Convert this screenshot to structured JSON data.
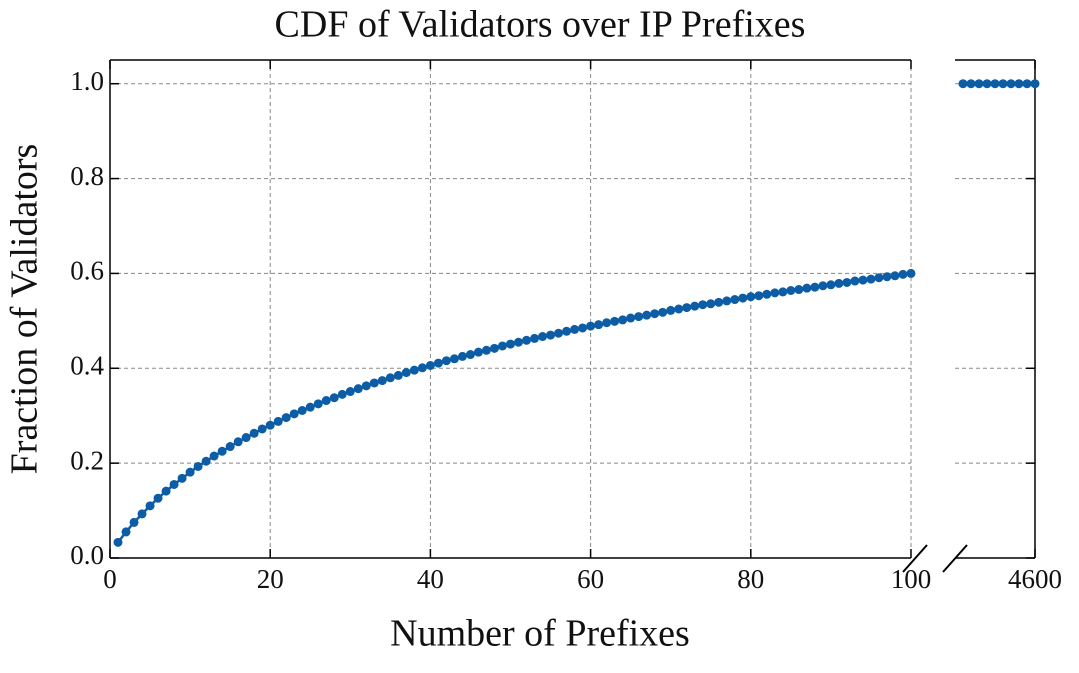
{
  "chart_data": {
    "type": "line",
    "title": "CDF of Validators over IP Prefixes",
    "xlabel": "Number of Prefixes",
    "ylabel": "Fraction of Validators",
    "color": "#0c5da5",
    "grid": true,
    "markers": true,
    "ylim": [
      0,
      1.05
    ],
    "yticks": [
      {
        "value": 0,
        "label": "0.0"
      },
      0.2,
      0.4,
      0.6,
      0.8,
      {
        "value": 1,
        "label": "1.0"
      }
    ],
    "panels": [
      {
        "xlim": [
          0,
          100
        ],
        "xticks": [
          0,
          20,
          40,
          60,
          80,
          100
        ],
        "x": [
          1,
          2,
          3,
          4,
          5,
          6,
          7,
          8,
          9,
          10,
          11,
          12,
          13,
          14,
          15,
          16,
          17,
          18,
          19,
          20,
          21,
          22,
          23,
          24,
          25,
          26,
          27,
          28,
          29,
          30,
          31,
          32,
          33,
          34,
          35,
          36,
          37,
          38,
          39,
          40,
          41,
          42,
          43,
          44,
          45,
          46,
          47,
          48,
          49,
          50,
          51,
          52,
          53,
          54,
          55,
          56,
          57,
          58,
          59,
          60,
          61,
          62,
          63,
          64,
          65,
          66,
          67,
          68,
          69,
          70,
          71,
          72,
          73,
          74,
          75,
          76,
          77,
          78,
          79,
          80,
          81,
          82,
          83,
          84,
          85,
          86,
          87,
          88,
          89,
          90,
          91,
          92,
          93,
          94,
          95,
          96,
          97,
          98,
          99,
          100
        ],
        "values": [
          0.033,
          0.055,
          0.075,
          0.093,
          0.11,
          0.126,
          0.141,
          0.155,
          0.168,
          0.181,
          0.193,
          0.204,
          0.215,
          0.225,
          0.235,
          0.245,
          0.254,
          0.263,
          0.272,
          0.28,
          0.288,
          0.296,
          0.304,
          0.311,
          0.318,
          0.325,
          0.332,
          0.338,
          0.345,
          0.351,
          0.357,
          0.363,
          0.369,
          0.374,
          0.38,
          0.385,
          0.391,
          0.396,
          0.401,
          0.406,
          0.411,
          0.416,
          0.42,
          0.425,
          0.429,
          0.434,
          0.438,
          0.442,
          0.447,
          0.451,
          0.455,
          0.459,
          0.463,
          0.467,
          0.47,
          0.474,
          0.478,
          0.482,
          0.485,
          0.489,
          0.492,
          0.496,
          0.499,
          0.502,
          0.506,
          0.509,
          0.512,
          0.515,
          0.518,
          0.522,
          0.525,
          0.528,
          0.531,
          0.534,
          0.536,
          0.539,
          0.542,
          0.545,
          0.548,
          0.551,
          0.553,
          0.556,
          0.559,
          0.561,
          0.564,
          0.566,
          0.569,
          0.571,
          0.574,
          0.576,
          0.579,
          0.581,
          0.584,
          0.586,
          0.588,
          0.591,
          0.593,
          0.595,
          0.598,
          0.6
        ]
      },
      {
        "xlim": [
          4590,
          4600
        ],
        "xticks": [
          4600
        ],
        "x": [
          4591,
          4592,
          4593,
          4594,
          4595,
          4596,
          4597,
          4598,
          4599,
          4600
        ],
        "values": [
          1,
          1,
          1,
          1,
          1,
          1,
          1,
          1,
          1,
          1
        ]
      }
    ]
  }
}
